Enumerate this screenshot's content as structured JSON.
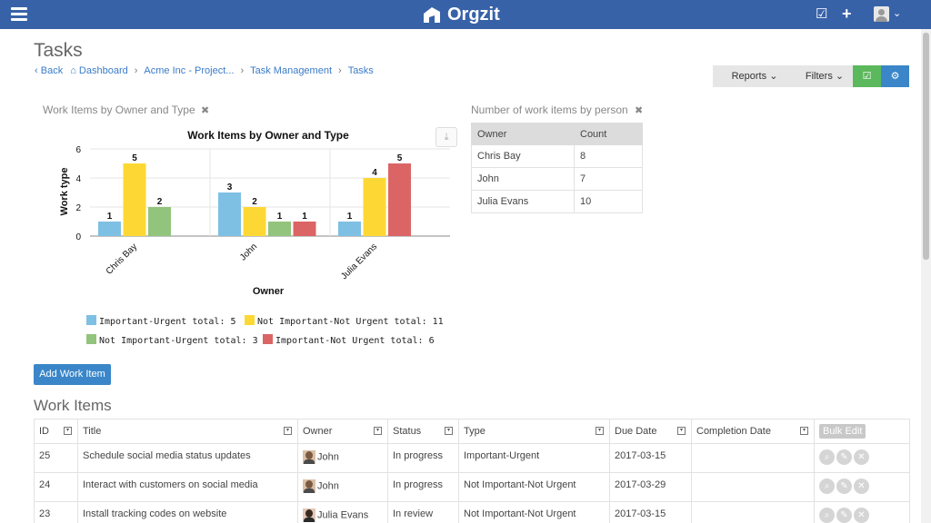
{
  "app": {
    "name": "Orgzit"
  },
  "page": {
    "title": "Tasks"
  },
  "breadcrumb": [
    {
      "label": "Back"
    },
    {
      "label": "Dashboard"
    },
    {
      "label": "Acme Inc - Project..."
    },
    {
      "label": "Task Management"
    },
    {
      "label": "Tasks"
    }
  ],
  "toolbar": {
    "reports": "Reports",
    "filters": "Filters"
  },
  "widgets": {
    "chart": {
      "title": "Work Items by Owner and Type"
    },
    "count": {
      "title": "Number of work items by person"
    }
  },
  "chart_data": {
    "type": "bar",
    "title": "Work Items by Owner and Type",
    "xlabel": "Owner",
    "ylabel": "Work type",
    "ylim": [
      0,
      6
    ],
    "yticks": [
      "0",
      "2",
      "4",
      "6"
    ],
    "categories": [
      "Chris Bay",
      "John",
      "Julia Evans"
    ],
    "series": [
      {
        "name": "Important-Urgent",
        "color": "#7ec0e4",
        "values": [
          1,
          3,
          1
        ]
      },
      {
        "name": "Not Important-Not Urgent",
        "color": "#fdd835",
        "values": [
          5,
          2,
          4
        ]
      },
      {
        "name": "Not Important-Urgent",
        "color": "#92c47d",
        "values": [
          2,
          1,
          null
        ]
      },
      {
        "name": "Important-Not Urgent",
        "color": "#db6565",
        "values": [
          null,
          1,
          5
        ]
      }
    ],
    "legend": [
      "Important-Urgent total: 5",
      "Not Important-Not Urgent total: 11",
      "Not Important-Urgent total: 3",
      "Important-Not Urgent total: 6"
    ],
    "grid": true
  },
  "count_table": {
    "headers": [
      "Owner",
      "Count"
    ],
    "rows": [
      {
        "owner": "Chris Bay",
        "count": "8"
      },
      {
        "owner": "John",
        "count": "7"
      },
      {
        "owner": "Julia Evans",
        "count": "10"
      }
    ]
  },
  "add_button": "Add Work Item",
  "work_items": {
    "title": "Work Items",
    "headers": {
      "id": "ID",
      "title": "Title",
      "owner": "Owner",
      "status": "Status",
      "type": "Type",
      "due": "Due Date",
      "completion": "Completion Date",
      "bulk": "Bulk Edit"
    },
    "rows": [
      {
        "id": "25",
        "title": "Schedule social media status updates",
        "owner": "John",
        "status": "In progress",
        "type": "Important-Urgent",
        "due": "2017-03-15",
        "completion": ""
      },
      {
        "id": "24",
        "title": "Interact with customers on social media",
        "owner": "John",
        "status": "In progress",
        "type": "Not Important-Not Urgent",
        "due": "2017-03-29",
        "completion": ""
      },
      {
        "id": "23",
        "title": "Install tracking codes on website",
        "owner": "Julia Evans",
        "status": "In review",
        "type": "Not Important-Not Urgent",
        "due": "2017-03-15",
        "completion": ""
      }
    ]
  },
  "icons": {
    "menu": "hamburger-icon",
    "logo": "orgzit-logo-icon",
    "tasks": "checkbox-icon",
    "add": "plus-icon",
    "user": "user-avatar-icon",
    "close": "close-icon",
    "download": "download-icon",
    "view": "view-icon",
    "edit": "edit-icon",
    "delete": "delete-icon"
  }
}
